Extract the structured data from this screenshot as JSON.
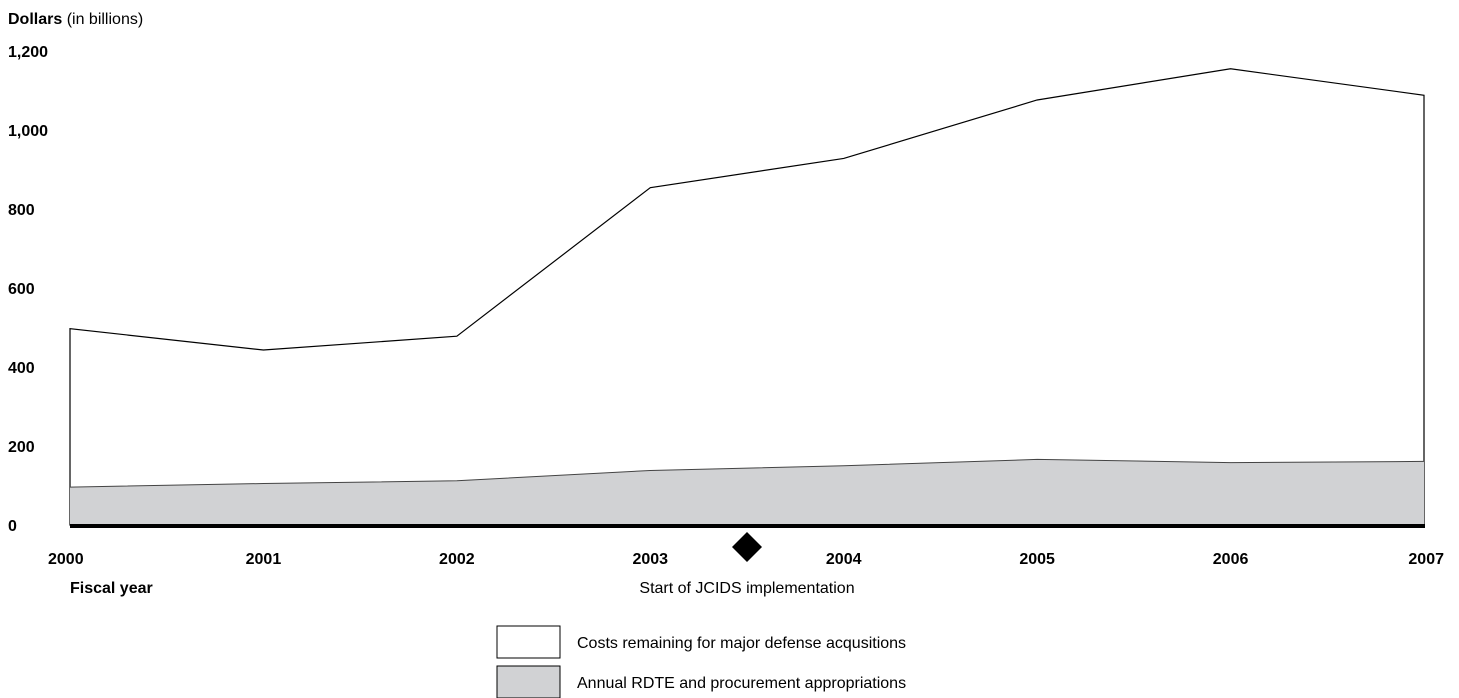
{
  "chart_data": {
    "type": "area",
    "title": "",
    "ylabel_bold": "Dollars",
    "ylabel_rest": " (in billions)",
    "xlabel": "Fiscal year",
    "ylim": [
      0,
      1200
    ],
    "y_ticks": [
      "0",
      "200",
      "400",
      "600",
      "800",
      "1,000",
      "1,200"
    ],
    "y_tick_values": [
      0,
      200,
      400,
      600,
      800,
      1000,
      1200
    ],
    "x": [
      "2000",
      "2001",
      "2002",
      "2003",
      "2004",
      "2005",
      "2006",
      "2007"
    ],
    "series": [
      {
        "name": "Costs remaining for major defense acqusitions",
        "values": [
          497,
          443,
          478,
          854,
          928,
          1076,
          1155,
          1088
        ],
        "color": "#ffffff"
      },
      {
        "name": "Annual RDTE and procurement appropriations",
        "values": [
          96,
          105,
          112,
          138,
          150,
          166,
          158,
          161
        ],
        "color": "#d1d2d4"
      }
    ],
    "annotation": {
      "label": "Start of JCIDS implementation",
      "x_position": 2003.5,
      "marker": "diamond"
    },
    "grid": false,
    "legend_position": "bottom-center"
  }
}
